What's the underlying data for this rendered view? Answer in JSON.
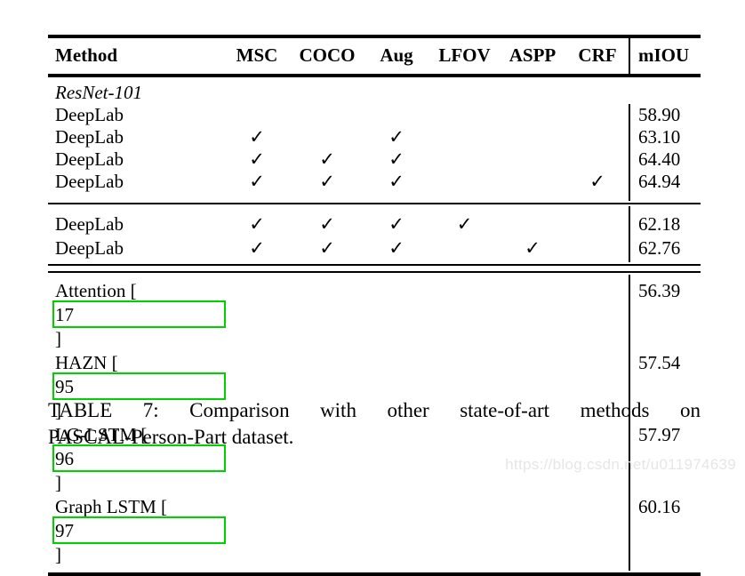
{
  "colors": {
    "text": "#000000",
    "rule": "#000000",
    "citation_box_green": "#00d000",
    "watermark_gray": "#e6e6e6"
  },
  "glyphs": {
    "check": "✓"
  },
  "table": {
    "header": {
      "method": "Method",
      "flags": [
        "MSC",
        "COCO",
        "Aug",
        "LFOV",
        "ASPP",
        "CRF"
      ],
      "miou": "mIOU"
    },
    "sections": [
      {
        "rows": [
          {
            "method": "ResNet-101",
            "italic": true,
            "group_header": true,
            "checks": [
              false,
              false,
              false,
              false,
              false,
              false
            ],
            "miou": ""
          },
          {
            "method": "DeepLab",
            "checks": [
              false,
              false,
              false,
              false,
              false,
              false
            ],
            "miou": "58.90"
          },
          {
            "method": "DeepLab",
            "checks": [
              true,
              false,
              true,
              false,
              false,
              false
            ],
            "miou": "63.10"
          },
          {
            "method": "DeepLab",
            "checks": [
              true,
              true,
              true,
              false,
              false,
              false
            ],
            "miou": "64.40"
          },
          {
            "method": "DeepLab",
            "checks": [
              true,
              true,
              true,
              false,
              false,
              true
            ],
            "miou": "64.94"
          }
        ]
      },
      {
        "rows": [
          {
            "method": "DeepLab",
            "checks": [
              true,
              true,
              true,
              true,
              false,
              false
            ],
            "miou": "62.18"
          },
          {
            "method": "DeepLab",
            "checks": [
              true,
              true,
              true,
              false,
              true,
              false
            ],
            "miou": "62.76"
          }
        ]
      },
      {
        "rows": [
          {
            "method": "Attention",
            "citation": "17",
            "checks": [
              false,
              false,
              false,
              false,
              false,
              false
            ],
            "miou": "56.39"
          },
          {
            "method": "HAZN",
            "citation": "95",
            "checks": [
              false,
              false,
              false,
              false,
              false,
              false
            ],
            "miou": "57.54"
          },
          {
            "method": "LG-LSTM",
            "citation": "96",
            "checks": [
              false,
              false,
              false,
              false,
              false,
              false
            ],
            "miou": "57.97"
          },
          {
            "method": "Graph LSTM",
            "citation": "97",
            "checks": [
              false,
              false,
              false,
              false,
              false,
              false
            ],
            "miou": "60.16"
          }
        ]
      }
    ]
  },
  "caption": {
    "line1": "TABLE 7: Comparison with other state-of-art methods on",
    "line2": "PASCAL-Person-Part dataset."
  },
  "watermark": "https://blog.csdn.net/u011974639"
}
